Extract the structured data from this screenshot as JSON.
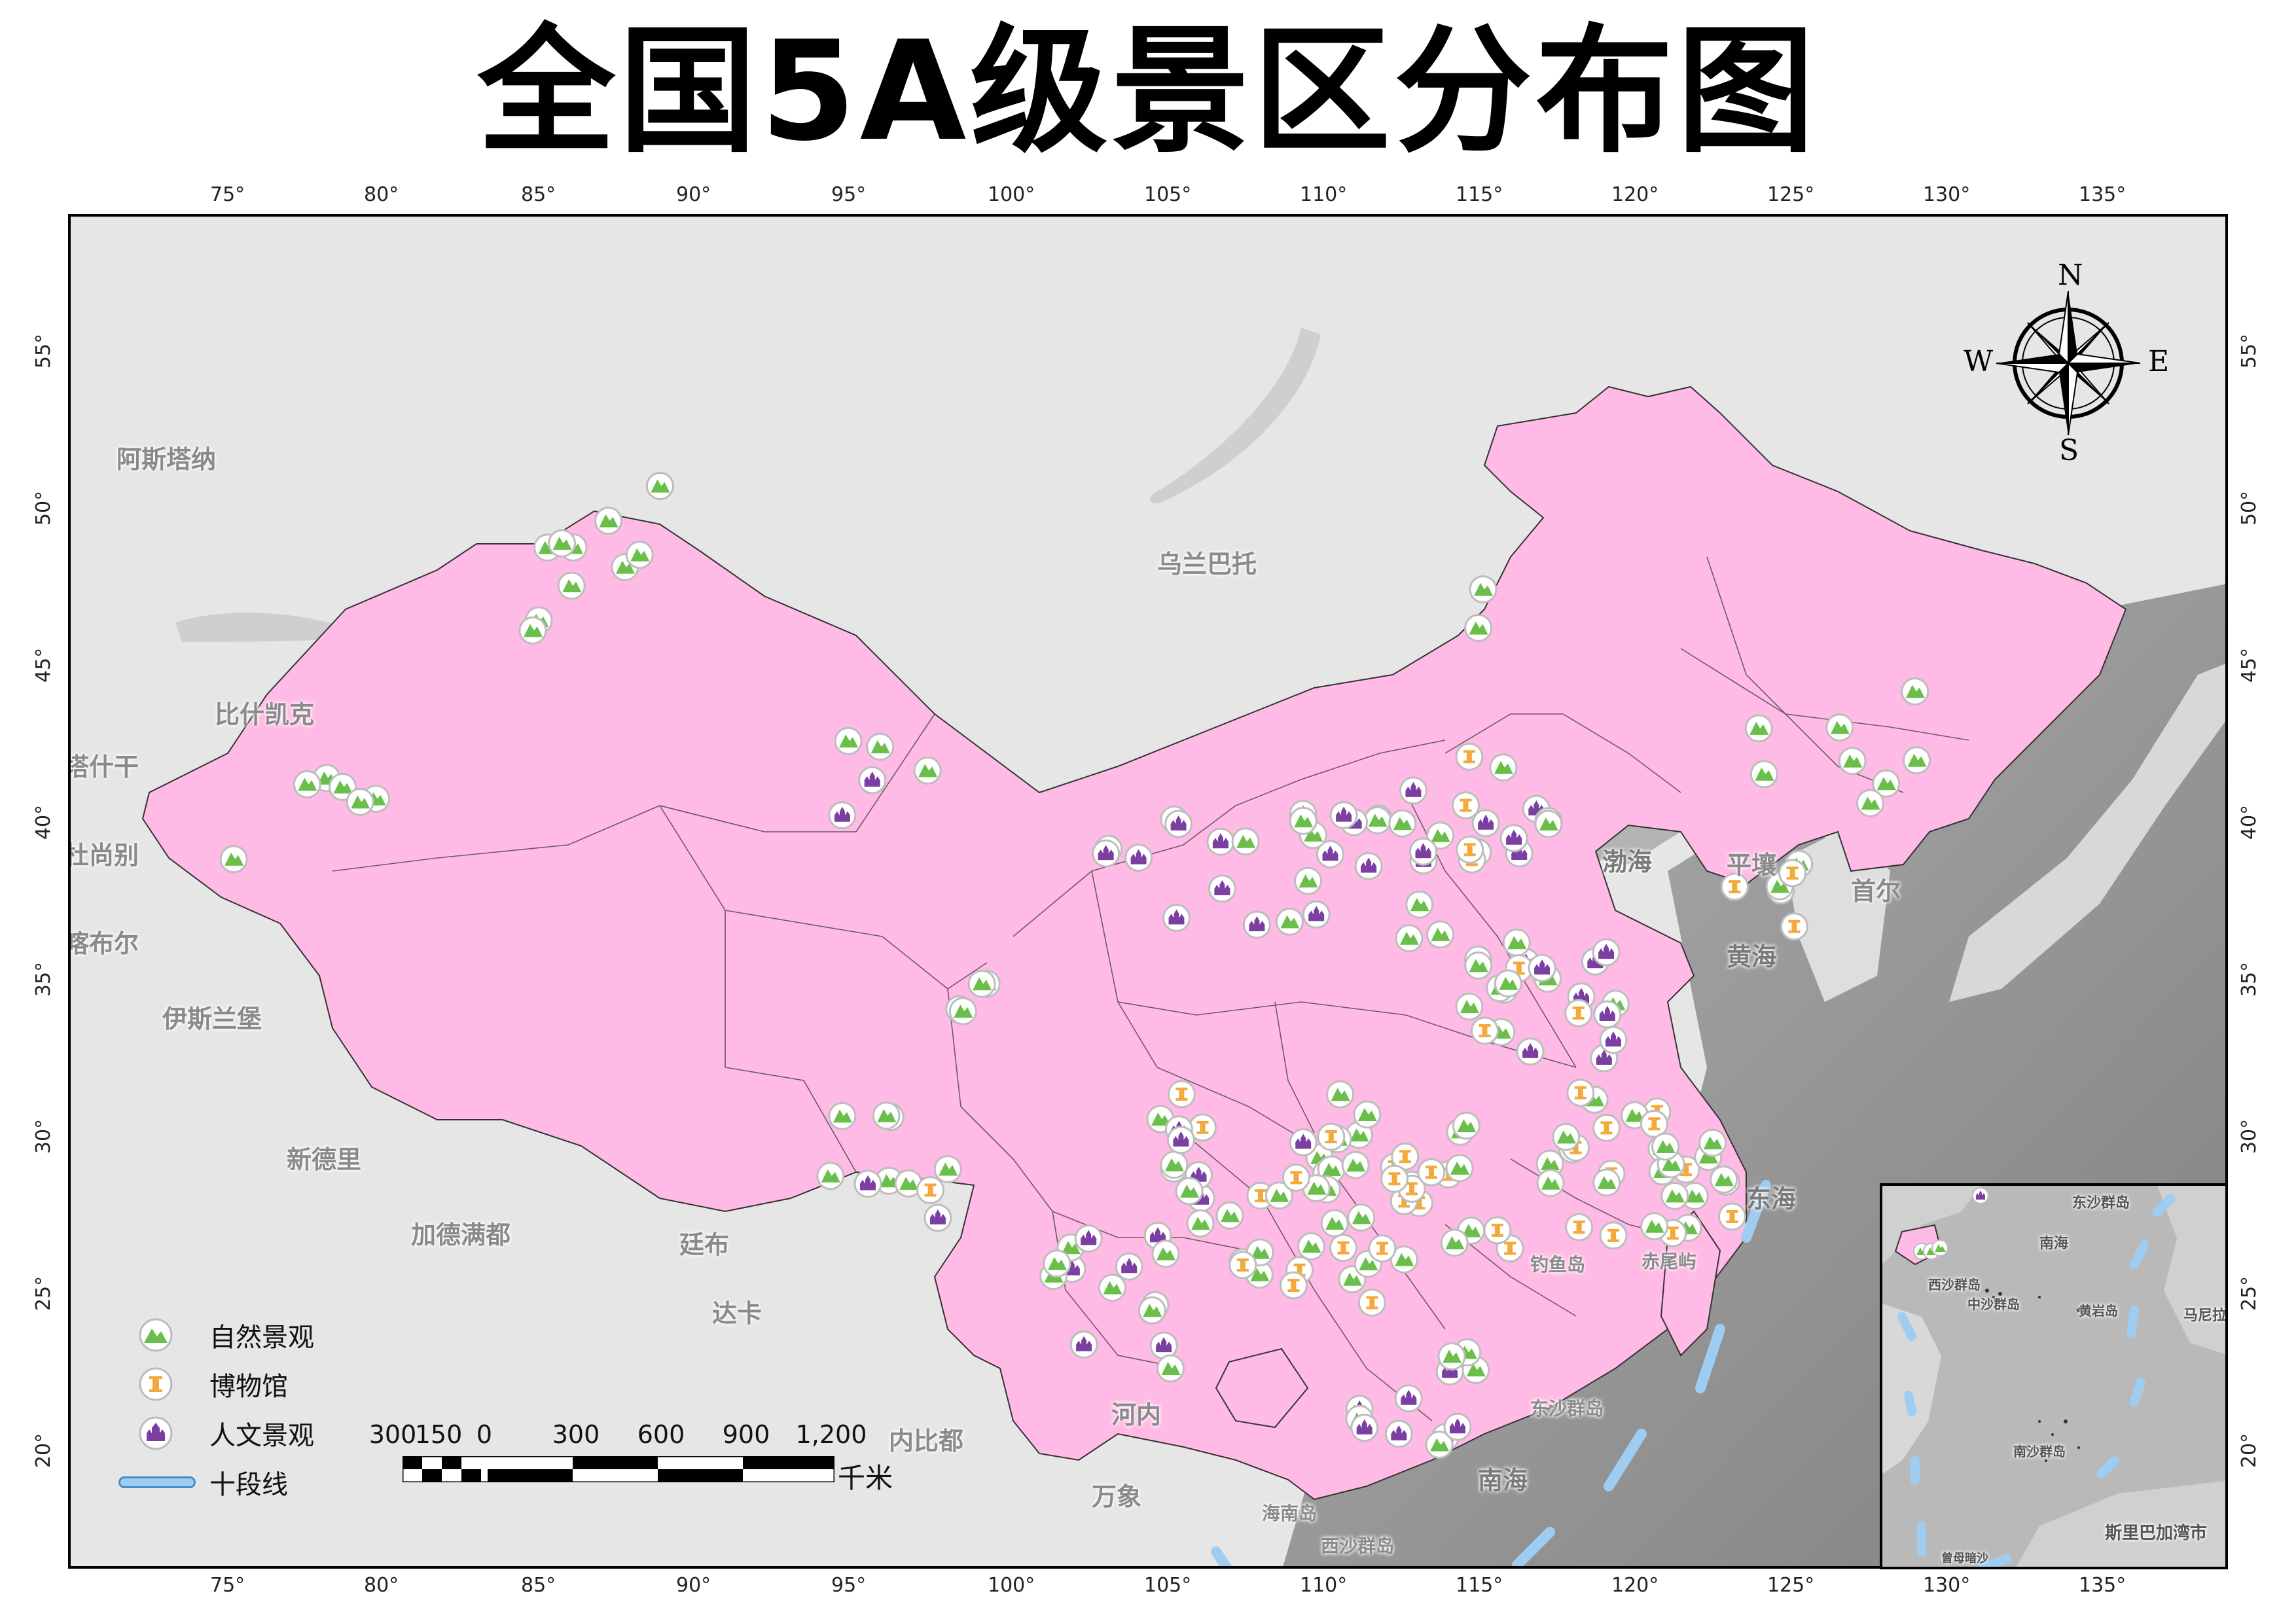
{
  "title": "全国5A级景区分布图",
  "graticule": {
    "lon_labels": [
      "75°",
      "80°",
      "85°",
      "90°",
      "95°",
      "100°",
      "105°",
      "110°",
      "115°",
      "120°",
      "125°",
      "130°",
      "135°"
    ],
    "lat_labels": [
      "55°",
      "50°",
      "45°",
      "40°",
      "35°",
      "30°",
      "25°",
      "20°"
    ]
  },
  "compass": {
    "n": "N",
    "s": "S",
    "e": "E",
    "w": "W"
  },
  "legend": [
    {
      "label": "自然景观",
      "icon": "mountain-icon",
      "color": "#6abf4b"
    },
    {
      "label": "博物馆",
      "icon": "museum-icon",
      "color": "#f3a93c"
    },
    {
      "label": "人文景观",
      "icon": "temple-icon",
      "color": "#7a3fa0"
    },
    {
      "label": "十段线",
      "icon": "ten-dash-line-icon",
      "color": "#9fcdf1"
    }
  ],
  "scalebar": {
    "ticks": [
      "300",
      "150",
      "0",
      "300",
      "600",
      "900",
      "1,200"
    ],
    "unit": "千米"
  },
  "places": {
    "astana": "阿斯塔纳",
    "ulaanbaatar": "乌兰巴托",
    "bishkek": "比什凯克",
    "tashkent": "塔什干",
    "dushanbe": "杜尚别",
    "kabul": "喀布尔",
    "islamabad": "伊斯兰堡",
    "new_delhi": "新德里",
    "kathmandu": "加德满都",
    "thimphu": "廷布",
    "dhaka": "达卡",
    "hanoi": "河内",
    "naypyidaw": "内比都",
    "vientiane": "万象",
    "pyongyang": "平壤",
    "seoul": "首尔",
    "bohai": "渤海",
    "yellow_sea": "黄海",
    "east_sea": "东海",
    "south_sea": "南海",
    "diaoyu": "钓鱼岛",
    "chiwei": "赤尾屿",
    "dongsha": "东沙群岛",
    "xisha": "西沙群岛",
    "hainan": "海南岛",
    "inset_dongsha": "东沙群岛",
    "inset_nanhai": "南海",
    "inset_xisha": "西沙群岛",
    "inset_zhongsha": "中沙群岛",
    "inset_huangyan": "黄岩岛",
    "inset_nansha": "南沙群岛",
    "inset_ceng": "曾母暗沙",
    "inset_manila": "马尼拉",
    "inset_bsb": "斯里巴加湾市"
  }
}
